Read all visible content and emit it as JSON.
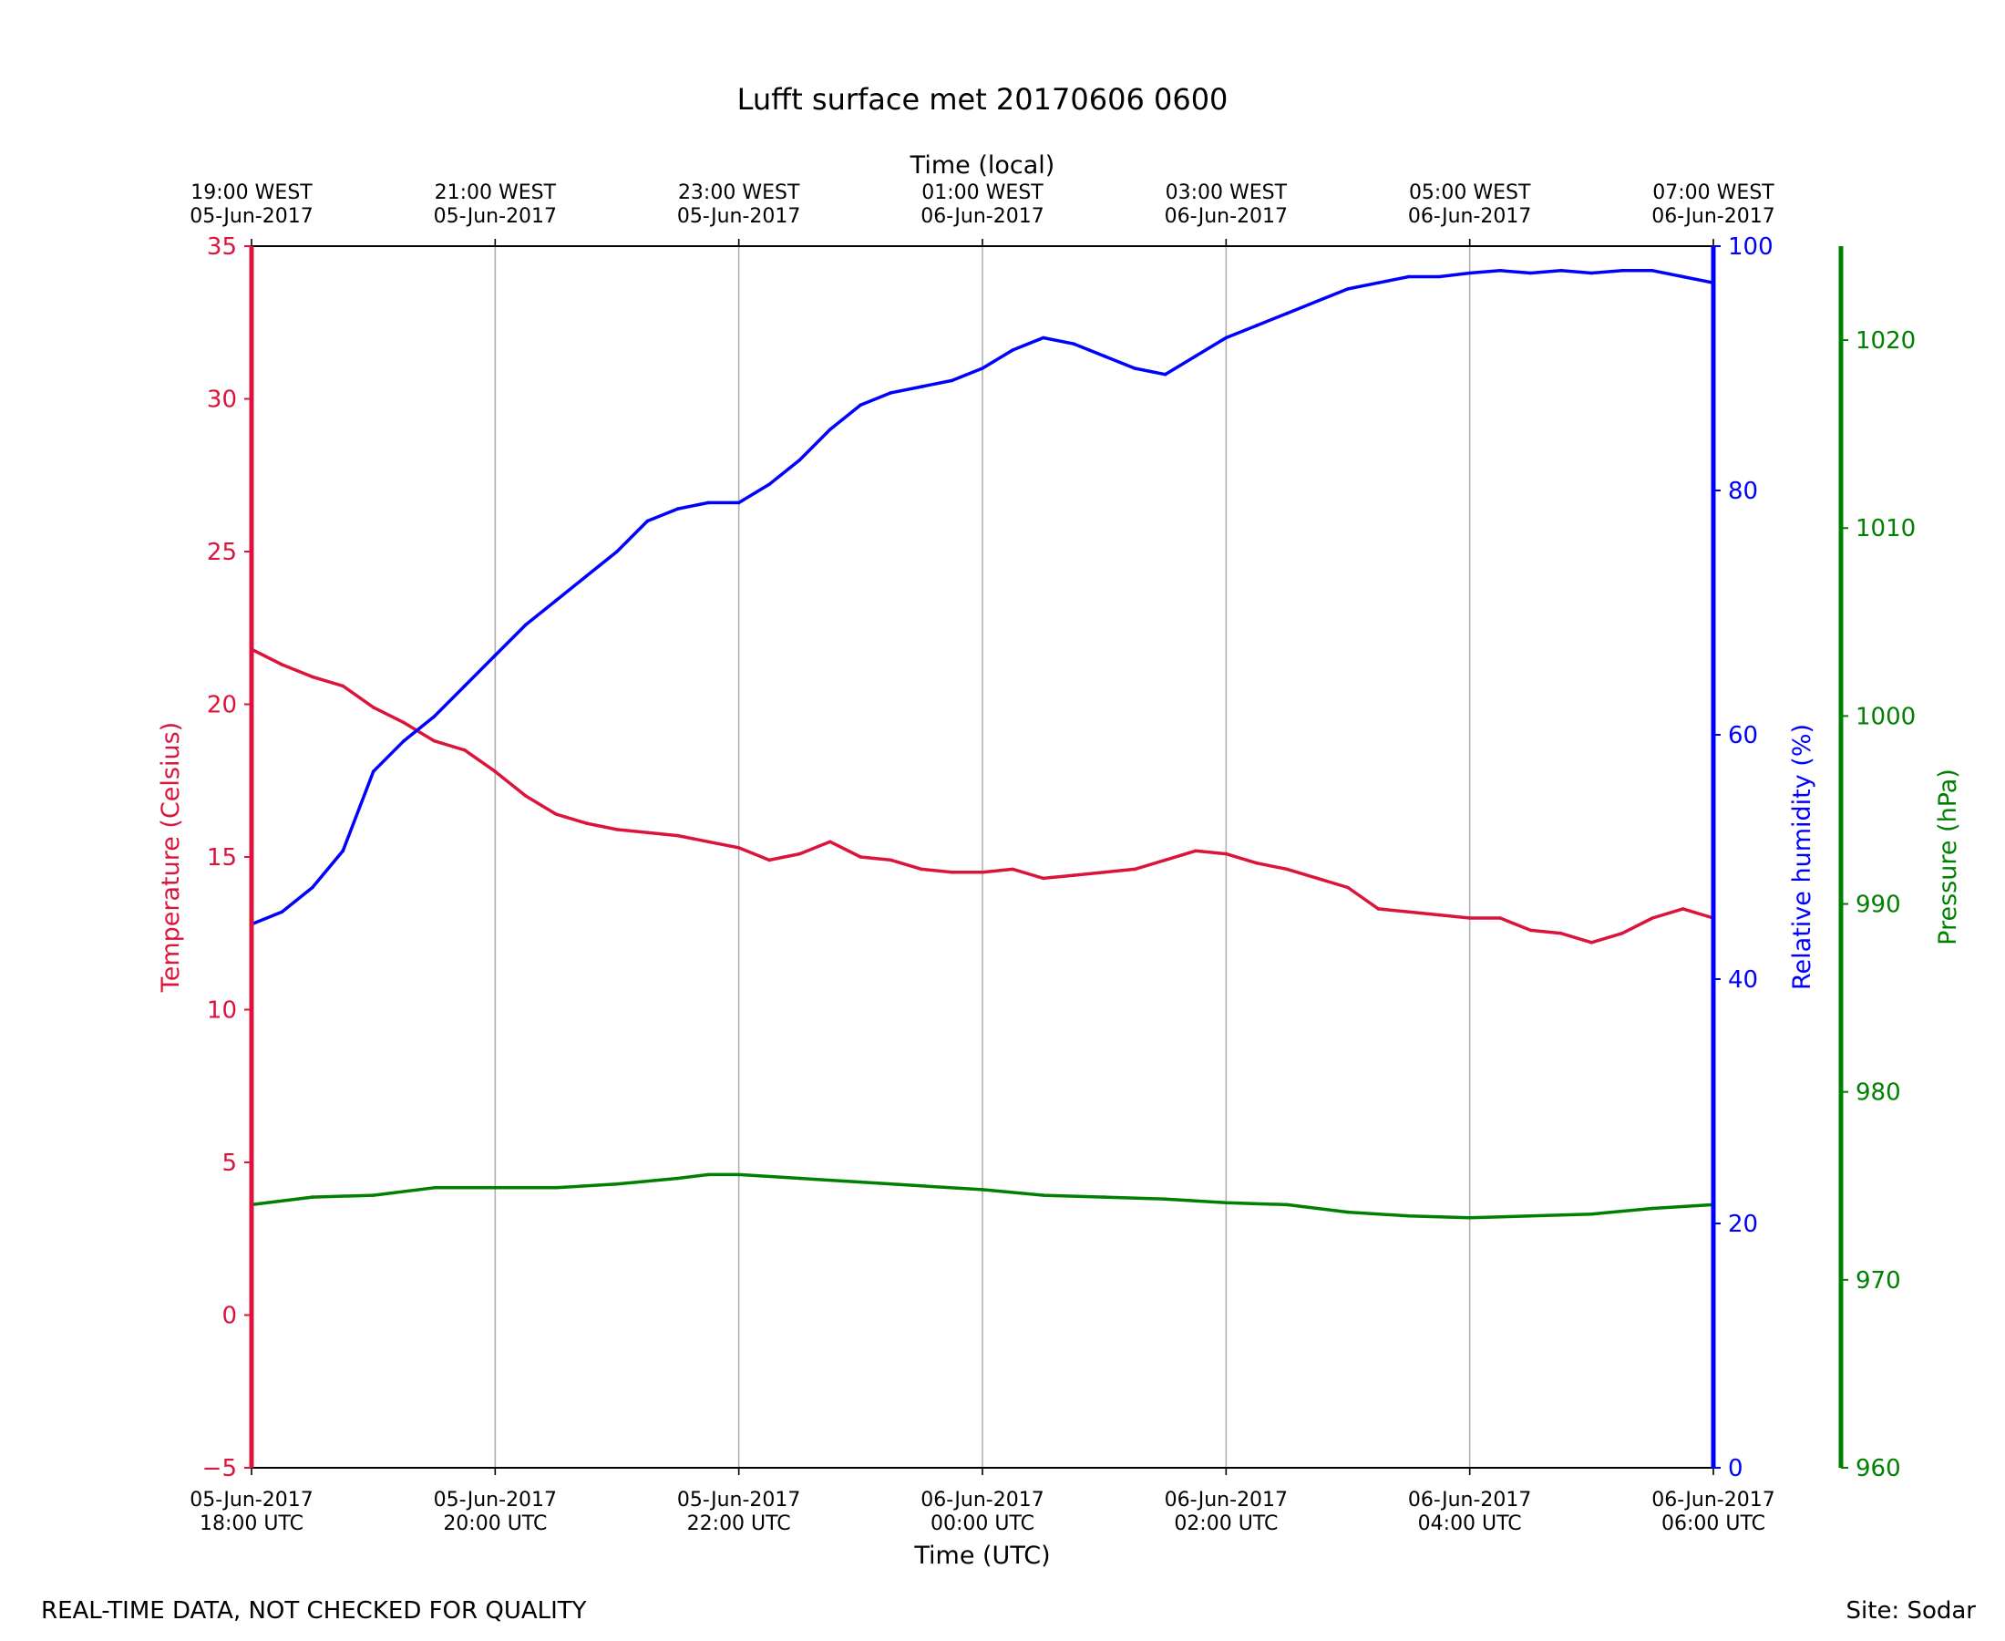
{
  "chart_data": {
    "type": "line",
    "title": "Lufft surface met 20170606 0600",
    "xlabel": "Time (UTC)",
    "x2label": "Time (local)",
    "x_ticks_utc": [
      [
        "05-Jun-2017",
        "18:00 UTC"
      ],
      [
        "05-Jun-2017",
        "20:00 UTC"
      ],
      [
        "05-Jun-2017",
        "22:00 UTC"
      ],
      [
        "06-Jun-2017",
        "00:00 UTC"
      ],
      [
        "06-Jun-2017",
        "02:00 UTC"
      ],
      [
        "06-Jun-2017",
        "04:00 UTC"
      ],
      [
        "06-Jun-2017",
        "06:00 UTC"
      ]
    ],
    "x_ticks_local": [
      [
        "19:00 WEST",
        "05-Jun-2017"
      ],
      [
        "21:00 WEST",
        "05-Jun-2017"
      ],
      [
        "23:00 WEST",
        "05-Jun-2017"
      ],
      [
        "01:00 WEST",
        "06-Jun-2017"
      ],
      [
        "03:00 WEST",
        "06-Jun-2017"
      ],
      [
        "05:00 WEST",
        "06-Jun-2017"
      ],
      [
        "07:00 WEST",
        "06-Jun-2017"
      ]
    ],
    "x_range": [
      "2017-06-05 18:00 UTC",
      "2017-06-06 06:00 UTC"
    ],
    "vertical_grid": true,
    "axes": {
      "temperature": {
        "label": "Temperature (Celsius)",
        "ylim": [
          -5,
          35
        ],
        "ticks": [
          -5,
          0,
          5,
          10,
          15,
          20,
          25,
          30,
          35
        ],
        "color": "#dc143c",
        "side": "left"
      },
      "humidity": {
        "label": "Relative humidity (%)",
        "ylim": [
          0,
          100
        ],
        "ticks": [
          0,
          20,
          40,
          60,
          80,
          100
        ],
        "color": "#0000ff",
        "side": "right"
      },
      "pressure": {
        "label": "Pressure (hPa)",
        "ylim": [
          960,
          1025
        ],
        "ticks": [
          960,
          970,
          980,
          990,
          1000,
          1010,
          1020
        ],
        "color": "#008000",
        "side": "right-outer"
      }
    },
    "series": [
      {
        "axis": "temperature",
        "color": "#dc143c",
        "x": [
          "18:00",
          "18:15",
          "18:30",
          "18:45",
          "19:00",
          "19:15",
          "19:30",
          "19:45",
          "20:00",
          "20:15",
          "20:30",
          "20:45",
          "21:00",
          "21:15",
          "21:30",
          "21:45",
          "22:00",
          "22:15",
          "22:30",
          "22:45",
          "23:00",
          "23:15",
          "23:30",
          "23:45",
          "00:00",
          "00:15",
          "00:30",
          "00:45",
          "01:00",
          "01:15",
          "01:30",
          "01:45",
          "02:00",
          "02:15",
          "02:30",
          "02:45",
          "03:00",
          "03:15",
          "03:30",
          "03:45",
          "04:00",
          "04:15",
          "04:30",
          "04:45",
          "05:00",
          "05:15",
          "05:30",
          "05:45",
          "06:00"
        ],
        "values": [
          21.8,
          21.3,
          20.9,
          20.6,
          19.9,
          19.4,
          18.8,
          18.5,
          17.8,
          17.0,
          16.4,
          16.1,
          15.9,
          15.8,
          15.7,
          15.5,
          15.3,
          14.9,
          15.1,
          15.5,
          15.0,
          14.9,
          14.6,
          14.5,
          14.5,
          14.6,
          14.3,
          14.4,
          14.5,
          14.6,
          14.9,
          15.2,
          15.1,
          14.8,
          14.6,
          14.3,
          14.0,
          13.3,
          13.2,
          13.1,
          13.0,
          13.0,
          12.6,
          12.5,
          12.2,
          12.5,
          13.0,
          13.3,
          13.0
        ]
      },
      {
        "axis": "humidity",
        "color": "#0000ff",
        "x": [
          "18:00",
          "18:15",
          "18:30",
          "18:45",
          "19:00",
          "19:15",
          "19:30",
          "19:45",
          "20:00",
          "20:15",
          "20:30",
          "20:45",
          "21:00",
          "21:15",
          "21:30",
          "21:45",
          "22:00",
          "22:15",
          "22:30",
          "22:45",
          "23:00",
          "23:15",
          "23:30",
          "23:45",
          "00:00",
          "00:15",
          "00:30",
          "00:45",
          "01:00",
          "01:15",
          "01:30",
          "01:45",
          "02:00",
          "02:15",
          "02:30",
          "02:45",
          "03:00",
          "03:15",
          "03:30",
          "03:45",
          "04:00",
          "04:15",
          "04:30",
          "04:45",
          "05:00",
          "05:15",
          "05:30",
          "05:45",
          "06:00"
        ],
        "values": [
          44.5,
          45.5,
          47.5,
          50.5,
          57.0,
          59.5,
          61.5,
          64.0,
          66.5,
          69.0,
          71.0,
          73.0,
          75.0,
          77.5,
          78.5,
          79.0,
          79.0,
          80.5,
          82.5,
          85.0,
          87.0,
          88.0,
          88.5,
          89.0,
          90.0,
          91.5,
          92.5,
          92.0,
          91.0,
          90.0,
          89.5,
          91.0,
          92.5,
          93.5,
          94.5,
          95.5,
          96.5,
          97.0,
          97.5,
          97.5,
          97.8,
          98.0,
          97.8,
          98.0,
          97.8,
          98.0,
          98.0,
          97.5,
          97.0
        ]
      },
      {
        "axis": "pressure",
        "color": "#008000",
        "x": [
          "18:00",
          "18:30",
          "19:00",
          "19:30",
          "20:00",
          "20:30",
          "21:00",
          "21:30",
          "21:45",
          "22:00",
          "22:30",
          "23:00",
          "23:30",
          "00:00",
          "00:30",
          "01:00",
          "01:30",
          "02:00",
          "02:30",
          "03:00",
          "03:30",
          "04:00",
          "04:30",
          "05:00",
          "05:30",
          "06:00"
        ],
        "values": [
          974.0,
          974.4,
          974.5,
          974.9,
          974.9,
          974.9,
          975.1,
          975.4,
          975.6,
          975.6,
          975.4,
          975.2,
          975.0,
          974.8,
          974.5,
          974.4,
          974.3,
          974.1,
          974.0,
          973.6,
          973.4,
          973.3,
          973.4,
          973.5,
          973.8,
          974.0
        ]
      }
    ]
  },
  "footer": {
    "left_note": "REAL-TIME DATA, NOT CHECKED FOR QUALITY",
    "right_note": "Site: Sodar"
  }
}
